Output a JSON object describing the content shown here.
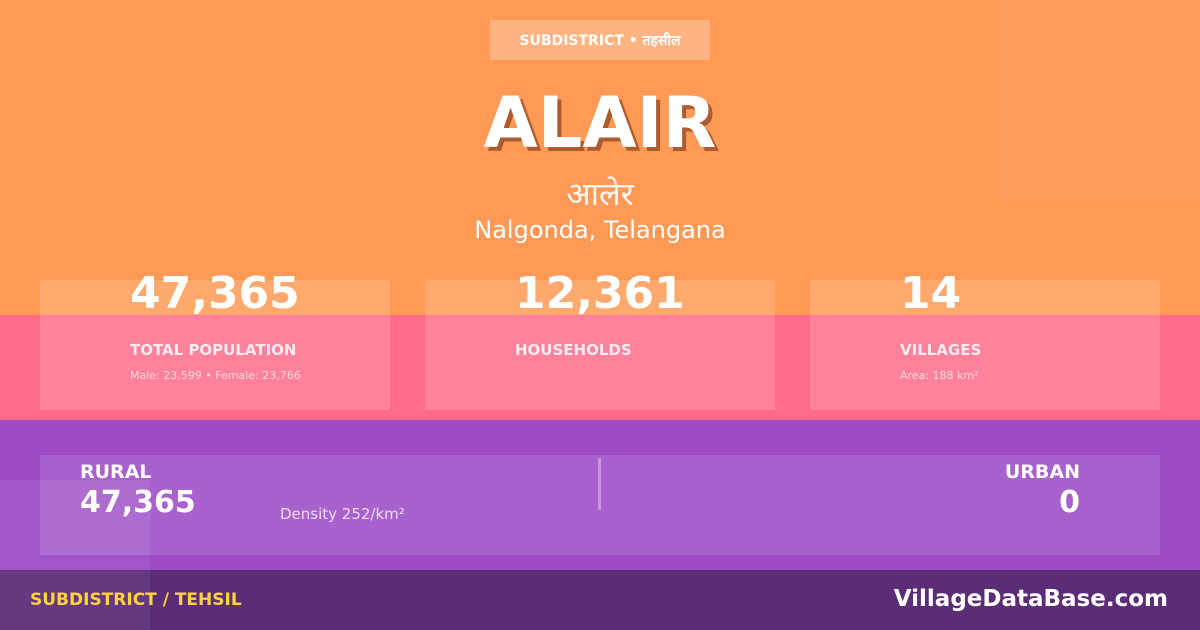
{
  "badge": "SUBDISTRICT • तहसील",
  "title": "ALAIR",
  "local_name": "आलेर",
  "location": "Nalgonda, Telangana",
  "stats": [
    {
      "value": "47,365",
      "label": "TOTAL POPULATION",
      "sub": "Male: 23,599 • Female: 23,766"
    },
    {
      "value": "12,361",
      "label": "HOUSEHOLDS",
      "sub": ""
    },
    {
      "value": "14",
      "label": "VILLAGES",
      "sub": "Area: 188 km²"
    }
  ],
  "rural": {
    "label": "RURAL",
    "value": "47,365",
    "density": "Density 252/km²"
  },
  "urban": {
    "label": "URBAN",
    "value": "0"
  },
  "footer": {
    "left": "SUBDISTRICT / TEHSIL",
    "right": "VillageDataBase.com"
  },
  "colors": {
    "orange": "#FF9A56",
    "pink": "#FF6B8A",
    "purple": "#9D4BC6",
    "footer": "#5C2D77",
    "accent": "#FFD43B"
  }
}
